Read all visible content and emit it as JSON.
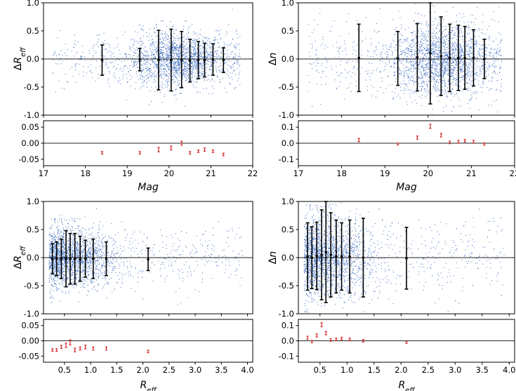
{
  "chart_data": [
    {
      "type": "scatter",
      "panel": "top-left",
      "xlabel": "Mag",
      "ylabel_main": "ΔR",
      "ylabel_main_sub": "eff",
      "ylabel_sub": "",
      "xlim": [
        17,
        22
      ],
      "ylim_main": [
        -1.0,
        1.0
      ],
      "ylim_sub": [
        -0.07,
        0.07
      ],
      "xticks": [
        "17",
        "18",
        "19",
        "20",
        "21",
        "22"
      ],
      "yticks_main": [
        "1.0",
        "0.5",
        "0.0",
        "-0.5",
        "-1.0"
      ],
      "yticks_sub": [
        "0.05",
        "0.00",
        "-0.05"
      ],
      "scatter": {
        "center": 20.2,
        "spread": 1.0,
        "x_min": 17.2,
        "x_max": 21.7,
        "y_sigma": 0.18,
        "n": 2200
      },
      "binned": [
        {
          "x": 18.4,
          "y": -0.02,
          "err": 0.27
        },
        {
          "x": 19.3,
          "y": -0.01,
          "err": 0.2
        },
        {
          "x": 19.75,
          "y": -0.02,
          "err": 0.53
        },
        {
          "x": 20.05,
          "y": -0.02,
          "err": 0.55
        },
        {
          "x": 20.3,
          "y": -0.01,
          "err": 0.5
        },
        {
          "x": 20.5,
          "y": -0.03,
          "err": 0.38
        },
        {
          "x": 20.7,
          "y": -0.02,
          "err": 0.33
        },
        {
          "x": 20.85,
          "y": -0.02,
          "err": 0.3
        },
        {
          "x": 21.05,
          "y": -0.01,
          "err": 0.28
        },
        {
          "x": 21.3,
          "y": -0.02,
          "err": 0.22
        }
      ],
      "residuals": [
        {
          "x": 18.4,
          "y": -0.03,
          "err": 0.004
        },
        {
          "x": 19.3,
          "y": -0.03,
          "err": 0.004
        },
        {
          "x": 19.75,
          "y": -0.02,
          "err": 0.007
        },
        {
          "x": 20.05,
          "y": -0.015,
          "err": 0.006
        },
        {
          "x": 20.3,
          "y": 0.0,
          "err": 0.006
        },
        {
          "x": 20.5,
          "y": -0.03,
          "err": 0.004
        },
        {
          "x": 20.7,
          "y": -0.025,
          "err": 0.004
        },
        {
          "x": 20.85,
          "y": -0.02,
          "err": 0.005
        },
        {
          "x": 21.05,
          "y": -0.025,
          "err": 0.004
        },
        {
          "x": 21.3,
          "y": -0.035,
          "err": 0.004
        }
      ]
    },
    {
      "type": "scatter",
      "panel": "top-right",
      "xlabel": "Mag",
      "ylabel_main": "Δn",
      "ylabel_main_sub": "",
      "ylabel_sub": "",
      "xlim": [
        17,
        22
      ],
      "ylim_main": [
        -1.0,
        1.0
      ],
      "ylim_sub": [
        -0.14,
        0.14
      ],
      "xticks": [
        "17",
        "18",
        "19",
        "20",
        "21",
        "22"
      ],
      "yticks_main": [
        "1.0",
        "0.5",
        "0.0",
        "-0.5",
        "-1.0"
      ],
      "yticks_sub": [
        "0.1",
        "0.0",
        "-0.1"
      ],
      "scatter": {
        "center": 20.3,
        "spread": 1.0,
        "x_min": 17.2,
        "x_max": 21.7,
        "y_sigma": 0.25,
        "n": 2400
      },
      "binned": [
        {
          "x": 18.4,
          "y": 0.02,
          "err": 0.6
        },
        {
          "x": 19.3,
          "y": 0.01,
          "err": 0.48
        },
        {
          "x": 19.75,
          "y": 0.03,
          "err": 0.6
        },
        {
          "x": 20.05,
          "y": 0.1,
          "err": 0.9
        },
        {
          "x": 20.3,
          "y": 0.05,
          "err": 0.7
        },
        {
          "x": 20.5,
          "y": 0.02,
          "err": 0.6
        },
        {
          "x": 20.7,
          "y": 0.02,
          "err": 0.58
        },
        {
          "x": 20.85,
          "y": 0.02,
          "err": 0.56
        },
        {
          "x": 21.05,
          "y": 0.02,
          "err": 0.5
        },
        {
          "x": 21.3,
          "y": 0.0,
          "err": 0.35
        }
      ],
      "residuals": [
        {
          "x": 18.4,
          "y": 0.02,
          "err": 0.01
        },
        {
          "x": 19.3,
          "y": -0.005,
          "err": 0.006
        },
        {
          "x": 19.75,
          "y": 0.035,
          "err": 0.01
        },
        {
          "x": 20.05,
          "y": 0.105,
          "err": 0.013
        },
        {
          "x": 20.3,
          "y": 0.05,
          "err": 0.011
        },
        {
          "x": 20.5,
          "y": 0.005,
          "err": 0.008
        },
        {
          "x": 20.7,
          "y": 0.01,
          "err": 0.008
        },
        {
          "x": 20.85,
          "y": 0.015,
          "err": 0.008
        },
        {
          "x": 21.05,
          "y": 0.01,
          "err": 0.008
        },
        {
          "x": 21.3,
          "y": -0.005,
          "err": 0.007
        }
      ]
    },
    {
      "type": "scatter",
      "panel": "bottom-left",
      "xlabel": "R",
      "xlabel_sub": "eff",
      "ylabel_main": "ΔR",
      "ylabel_main_sub": "eff",
      "ylabel_sub": "",
      "xlim": [
        0.1,
        4.1
      ],
      "ylim_main": [
        -1.0,
        1.0
      ],
      "ylim_sub": [
        -0.07,
        0.07
      ],
      "xticks": [
        "0.5",
        "1.0",
        "1.5",
        "2.0",
        "2.5",
        "3.0",
        "3.5",
        "4.0"
      ],
      "xtick_values": [
        0.5,
        1.0,
        1.5,
        2.0,
        2.5,
        3.0,
        3.5,
        4.0
      ],
      "yticks_main": [
        "1.0",
        "0.5",
        "0.0",
        "-0.5",
        "-1.0"
      ],
      "yticks_sub": [
        "0.05",
        "0.00",
        "-0.05"
      ],
      "scatter": {
        "center": 0.6,
        "spread": 0.7,
        "x_min": 0.2,
        "x_max": 3.9,
        "y_sigma": 0.2,
        "n": 2400
      },
      "binned": [
        {
          "x": 0.27,
          "y": -0.02,
          "err": 0.27
        },
        {
          "x": 0.35,
          "y": -0.02,
          "err": 0.3
        },
        {
          "x": 0.44,
          "y": -0.02,
          "err": 0.35
        },
        {
          "x": 0.53,
          "y": -0.02,
          "err": 0.5
        },
        {
          "x": 0.61,
          "y": -0.02,
          "err": 0.45
        },
        {
          "x": 0.7,
          "y": -0.02,
          "err": 0.45
        },
        {
          "x": 0.8,
          "y": -0.02,
          "err": 0.4
        },
        {
          "x": 0.9,
          "y": -0.02,
          "err": 0.33
        },
        {
          "x": 1.05,
          "y": -0.02,
          "err": 0.35
        },
        {
          "x": 1.3,
          "y": -0.02,
          "err": 0.3
        },
        {
          "x": 2.1,
          "y": -0.03,
          "err": 0.2
        }
      ],
      "residuals": [
        {
          "x": 0.27,
          "y": -0.03,
          "err": 0.004
        },
        {
          "x": 0.35,
          "y": -0.03,
          "err": 0.004
        },
        {
          "x": 0.44,
          "y": -0.02,
          "err": 0.005
        },
        {
          "x": 0.53,
          "y": -0.015,
          "err": 0.007
        },
        {
          "x": 0.61,
          "y": -0.005,
          "err": 0.008
        },
        {
          "x": 0.7,
          "y": -0.03,
          "err": 0.006
        },
        {
          "x": 0.8,
          "y": -0.025,
          "err": 0.005
        },
        {
          "x": 0.9,
          "y": -0.02,
          "err": 0.006
        },
        {
          "x": 1.05,
          "y": -0.025,
          "err": 0.005
        },
        {
          "x": 1.3,
          "y": -0.025,
          "err": 0.005
        },
        {
          "x": 2.1,
          "y": -0.035,
          "err": 0.004
        }
      ]
    },
    {
      "type": "scatter",
      "panel": "bottom-right",
      "xlabel": "R",
      "xlabel_sub": "eff",
      "ylabel_main": "Δn",
      "ylabel_main_sub": "",
      "ylabel_sub": "",
      "xlim": [
        0.1,
        4.1
      ],
      "ylim_main": [
        -1.0,
        1.0
      ],
      "ylim_sub": [
        -0.14,
        0.14
      ],
      "xticks": [
        "0.5",
        "1.0",
        "1.5",
        "2.0",
        "2.5",
        "3.0",
        "3.5",
        "4.0"
      ],
      "xtick_values": [
        0.5,
        1.0,
        1.5,
        2.0,
        2.5,
        3.0,
        3.5,
        4.0
      ],
      "yticks_main": [
        "1.0",
        "0.5",
        "0.0",
        "-0.5",
        "-1.0"
      ],
      "yticks_sub": [
        "0.1",
        "0.0",
        "-0.1"
      ],
      "scatter": {
        "center": 0.6,
        "spread": 0.7,
        "x_min": 0.2,
        "x_max": 3.9,
        "y_sigma": 0.27,
        "n": 2600
      },
      "binned": [
        {
          "x": 0.27,
          "y": 0.02,
          "err": 0.6
        },
        {
          "x": 0.35,
          "y": 0.0,
          "err": 0.55
        },
        {
          "x": 0.44,
          "y": 0.03,
          "err": 0.6
        },
        {
          "x": 0.53,
          "y": 0.05,
          "err": 0.8
        },
        {
          "x": 0.61,
          "y": 0.1,
          "err": 0.9
        },
        {
          "x": 0.7,
          "y": 0.05,
          "err": 0.75
        },
        {
          "x": 0.8,
          "y": 0.02,
          "err": 0.65
        },
        {
          "x": 0.9,
          "y": 0.02,
          "err": 0.6
        },
        {
          "x": 1.05,
          "y": 0.02,
          "err": 0.65
        },
        {
          "x": 1.3,
          "y": 0.0,
          "err": 0.7
        },
        {
          "x": 2.1,
          "y": -0.01,
          "err": 0.55
        }
      ],
      "residuals": [
        {
          "x": 0.27,
          "y": 0.02,
          "err": 0.01
        },
        {
          "x": 0.35,
          "y": -0.005,
          "err": 0.007
        },
        {
          "x": 0.44,
          "y": 0.035,
          "err": 0.01
        },
        {
          "x": 0.53,
          "y": 0.105,
          "err": 0.013
        },
        {
          "x": 0.61,
          "y": 0.05,
          "err": 0.011
        },
        {
          "x": 0.7,
          "y": 0.005,
          "err": 0.008
        },
        {
          "x": 0.8,
          "y": 0.01,
          "err": 0.008
        },
        {
          "x": 0.9,
          "y": 0.015,
          "err": 0.008
        },
        {
          "x": 1.05,
          "y": 0.01,
          "err": 0.008
        },
        {
          "x": 1.3,
          "y": 0.0,
          "err": 0.008
        },
        {
          "x": 2.1,
          "y": -0.01,
          "err": 0.007
        }
      ]
    }
  ],
  "colors": {
    "scatter": "#3a6bc0",
    "errorbar": "#000000",
    "residual": "#d62728"
  }
}
